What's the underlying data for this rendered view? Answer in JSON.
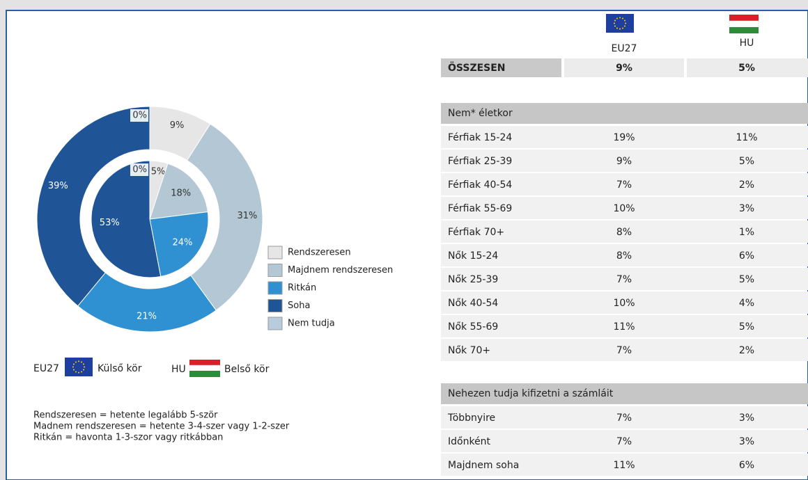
{
  "chart_data": {
    "type": "pie",
    "categories": [
      "Rendszeresen",
      "Majdnem rendszeresen",
      "Ritkán",
      "Soha",
      "Nem tudja"
    ],
    "colors": [
      "#e6e6e6",
      "#b3c7d4",
      "#2f90d2",
      "#1f5597",
      "#b9ccdd"
    ],
    "series": [
      {
        "name": "EU27",
        "ring": "Külső kör",
        "values": [
          9,
          31,
          21,
          39,
          0
        ],
        "value_labels": [
          "9%",
          "31%",
          "21%",
          "39%",
          "0%"
        ]
      },
      {
        "name": "HU",
        "ring": "Belső kör",
        "values": [
          5,
          18,
          24,
          53,
          0
        ],
        "value_labels": [
          "5%",
          "18%",
          "24%",
          "53%",
          "0%"
        ]
      }
    ],
    "notes": [
      "Rendszeresen = hetente legalább 5-ször",
      "Madnem rendszeresen = hetente 3-4-szer vagy 1-2-szer",
      "Ritkán = havonta 1-3-szor vagy ritkábban"
    ]
  },
  "table": {
    "columns": [
      "EU27",
      "HU"
    ],
    "total": [
      "ÖSSZESEN",
      "9%",
      "5%"
    ],
    "sections": [
      {
        "title": "Nem* életkor",
        "rows": [
          [
            "Férfiak 15-24",
            "19%",
            "11%"
          ],
          [
            "Férfiak 25-39",
            "9%",
            "5%"
          ],
          [
            "Férfiak 40-54",
            "7%",
            "2%"
          ],
          [
            "Férfiak 55-69",
            "10%",
            "3%"
          ],
          [
            "Férfiak 70+",
            "8%",
            "1%"
          ],
          [
            "Nők 15-24",
            "8%",
            "6%"
          ],
          [
            "Nők 25-39",
            "7%",
            "5%"
          ],
          [
            "Nők 40-54",
            "10%",
            "4%"
          ],
          [
            "Nők 55-69",
            "11%",
            "5%"
          ],
          [
            "Nők 70+",
            "7%",
            "2%"
          ]
        ]
      },
      {
        "title": "Nehezen tudja kifizetni a számláit",
        "rows": [
          [
            "Többnyire",
            "7%",
            "3%"
          ],
          [
            "Időnként",
            "7%",
            "3%"
          ],
          [
            "Majdnem soha",
            "11%",
            "6%"
          ]
        ]
      }
    ]
  }
}
